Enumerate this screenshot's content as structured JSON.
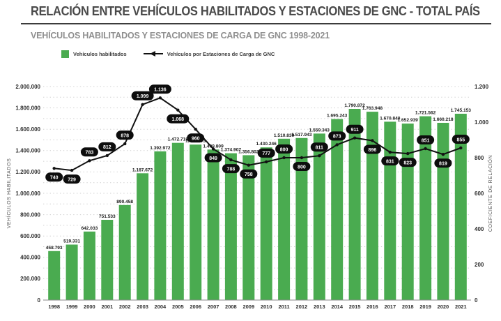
{
  "header": {
    "title": "RELACIÓN ENTRE VEHÍCULOS HABILITADOS Y ESTACIONES DE GNC - TOTAL PAÍS",
    "subtitle": "VEHÍCULOS HABILITADOS Y ESTACIONES DE CARGA DE GNC 1998-2021"
  },
  "legend": {
    "bars_label": "Vehículos habilitados",
    "line_label": "Vehículos por Estaciones de Carga de GNC"
  },
  "colors": {
    "bar": "#4aab50",
    "line": "#111111",
    "pill": "#0d0d0d",
    "grid": "#cfcfcf",
    "title_text": "#4a4a4a",
    "subtitle_text": "#8f8f8f"
  },
  "chart_data": {
    "type": "combo-bar-line",
    "title": "RELACIÓN ENTRE VEHÍCULOS HABILITADOS Y ESTACIONES DE GNC - TOTAL PAÍS",
    "subtitle": "VEHÍCULOS HABILITADOS Y ESTACIONES DE CARGA DE GNC 1998-2021",
    "grid": "dotted-horizontal, minor step 100.000",
    "legend_position": "top-left",
    "categories": [
      "1998",
      "1999",
      "2000",
      "2001",
      "2002",
      "2003",
      "2004",
      "2005",
      "2006",
      "2007",
      "2008",
      "2009",
      "2010",
      "2011",
      "2012",
      "2013",
      "2014",
      "2015",
      "2016",
      "2017",
      "2018",
      "2019",
      "2020",
      "2021"
    ],
    "series": [
      {
        "name": "Vehículos habilitados",
        "type": "bar",
        "axis": "left",
        "values": [
          458793,
          519331,
          642033,
          751533,
          890458,
          1187672,
          1392972,
          1472718,
          1456173,
          1409809,
          1374907,
          1356802,
          1430246,
          1510839,
          1517943,
          1559343,
          1695243,
          1790872,
          1763948,
          1670840,
          1652939,
          1721562,
          1660218,
          1745153
        ],
        "labels": [
          "458.793",
          "519.331",
          "642.033",
          "751.533",
          "890.458",
          "1.187.672",
          "1.392.972",
          "1.472.718",
          "1.456.173",
          "1.409.809",
          "1.374.907",
          "1.356.802",
          "1.430.246",
          "1.510.839",
          "1.517.943",
          "1.559.343",
          "1.695.243",
          "1.790.872",
          "1.763.948",
          "1.670.840",
          "1.652.939",
          "1.721.562",
          "1.660.218",
          "1.745.153"
        ]
      },
      {
        "name": "Vehículos por Estaciones de Carga de GNC",
        "type": "line",
        "axis": "right",
        "values": [
          740,
          729,
          783,
          812,
          878,
          1099,
          1136,
          1068,
          960,
          849,
          788,
          758,
          777,
          800,
          800,
          811,
          873,
          911,
          896,
          831,
          823,
          851,
          819,
          855
        ],
        "labels": [
          "740",
          "729",
          "783",
          "812",
          "878",
          "1.099",
          "1.136",
          "1.068",
          "960",
          "849",
          "788",
          "758",
          "777",
          "800",
          "800",
          "811",
          "873",
          "911",
          "896",
          "831",
          "823",
          "851",
          "819",
          "855"
        ],
        "label_positions": [
          "below",
          "below",
          "above",
          "above",
          "above",
          "above",
          "above",
          "below",
          "below",
          "below",
          "below",
          "below",
          "above",
          "above",
          "below",
          "above",
          "above",
          "above",
          "below",
          "below",
          "below",
          "above",
          "below",
          "above"
        ]
      }
    ],
    "left_axis": {
      "title": "VEHÍCULOS HABILITADOS",
      "min": 0,
      "max": 2000000,
      "tick_step": 200000,
      "minor_step": 100000,
      "tick_labels": [
        "0",
        "200.000",
        "400.000",
        "600.000",
        "800.000",
        "1.000.000",
        "1.200.000",
        "1.400.000",
        "1.600.000",
        "1.800.000",
        "2.000.000"
      ]
    },
    "right_axis": {
      "title": "COEFICIENTE DE RELACIÓN",
      "min": 0,
      "max": 1200,
      "tick_step": 200,
      "tick_labels": [
        "0",
        "200",
        "400",
        "600",
        "800",
        "1.000",
        "1.200"
      ]
    }
  }
}
